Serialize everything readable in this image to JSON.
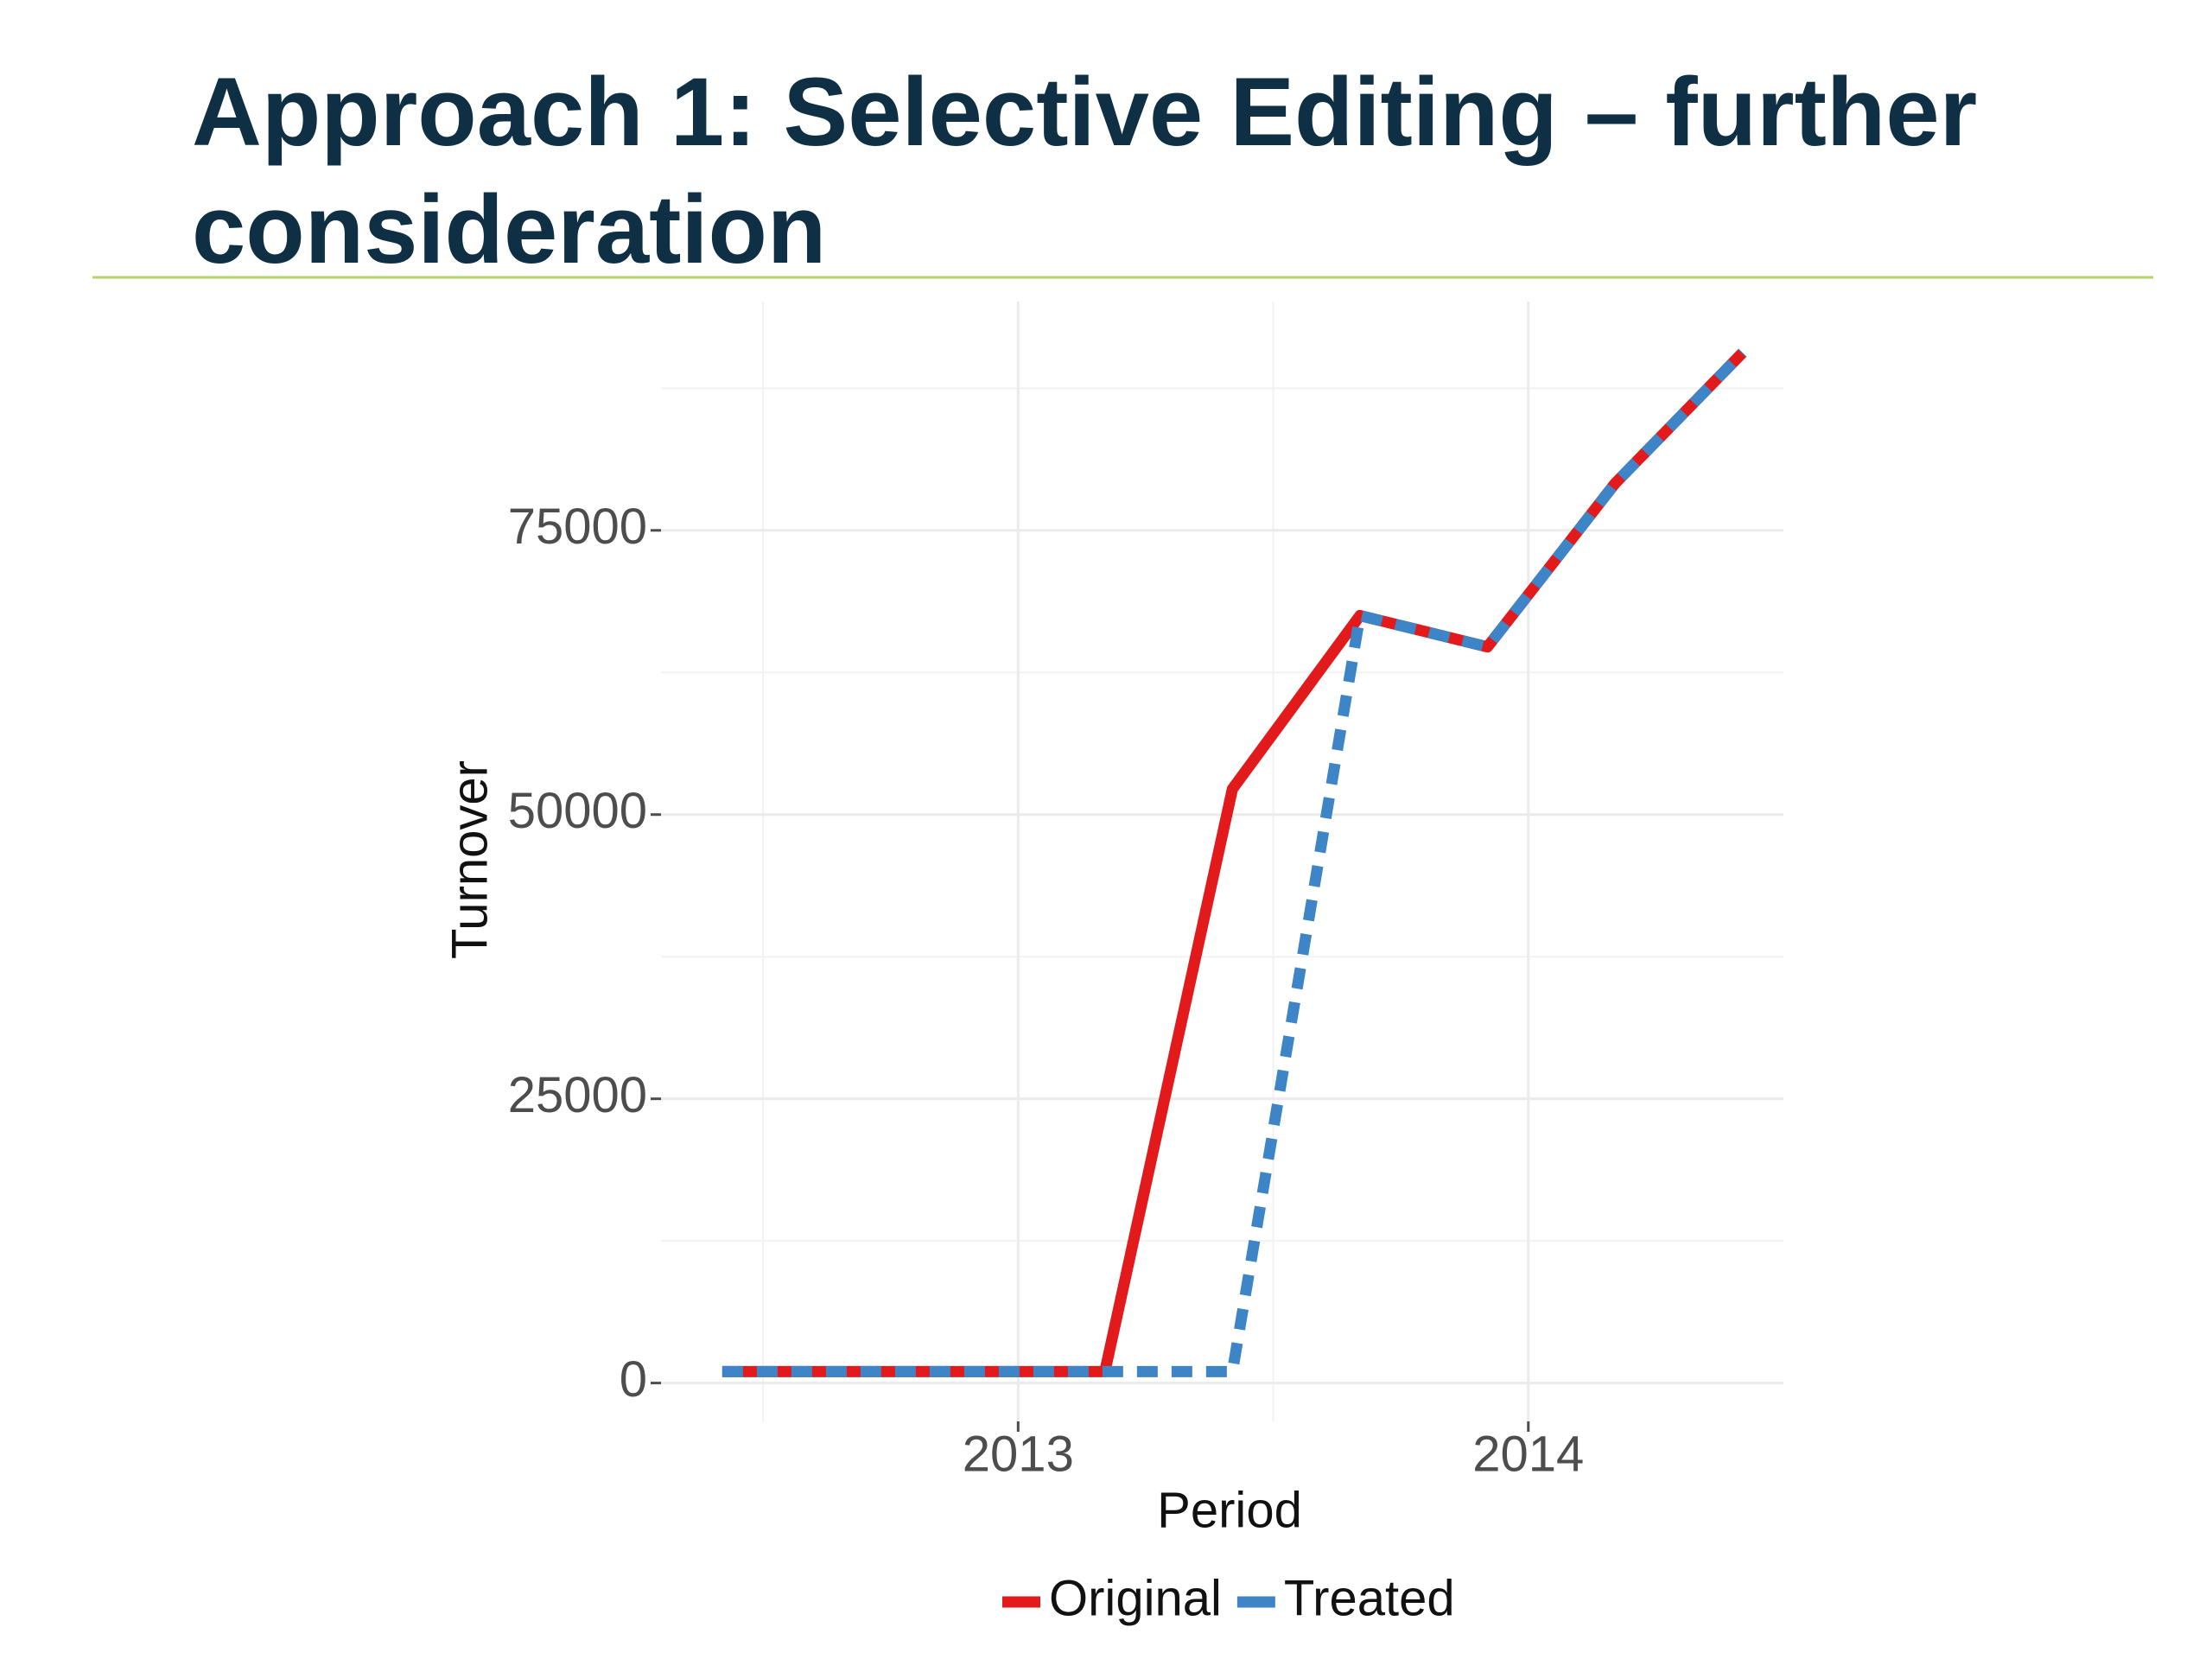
{
  "chart_data": {
    "type": "line",
    "title": "Approach 1: Selective Editing – further consideration",
    "x_label": "Period",
    "y_label": "Turnover",
    "x": [
      2012.42,
      2012.67,
      2012.92,
      2013.17,
      2013.42,
      2013.67,
      2013.92,
      2014.17,
      2014.42
    ],
    "series": [
      {
        "name": "Original",
        "color": "#e31a1c",
        "dash": false,
        "values": [
          1000,
          1000,
          1000,
          1000,
          52250,
          67500,
          64750,
          79125,
          90625
        ]
      },
      {
        "name": "Treated",
        "color": "#3d85c6",
        "dash": true,
        "values": [
          1000,
          1000,
          1000,
          1000,
          1000,
          67500,
          64750,
          79125,
          90625
        ]
      }
    ],
    "xlim": [
      2012.3,
      2014.5
    ],
    "xticks": [
      2013,
      2014
    ],
    "x_minor_ticks": [
      2012.5,
      2013.5
    ],
    "ylim": [
      -3375,
      95125
    ],
    "yticks": [
      0,
      25000,
      50000,
      75000
    ],
    "y_minor_ticks": [
      12500,
      37500,
      62500,
      87500
    ],
    "grid": true,
    "legend": "bottom"
  }
}
